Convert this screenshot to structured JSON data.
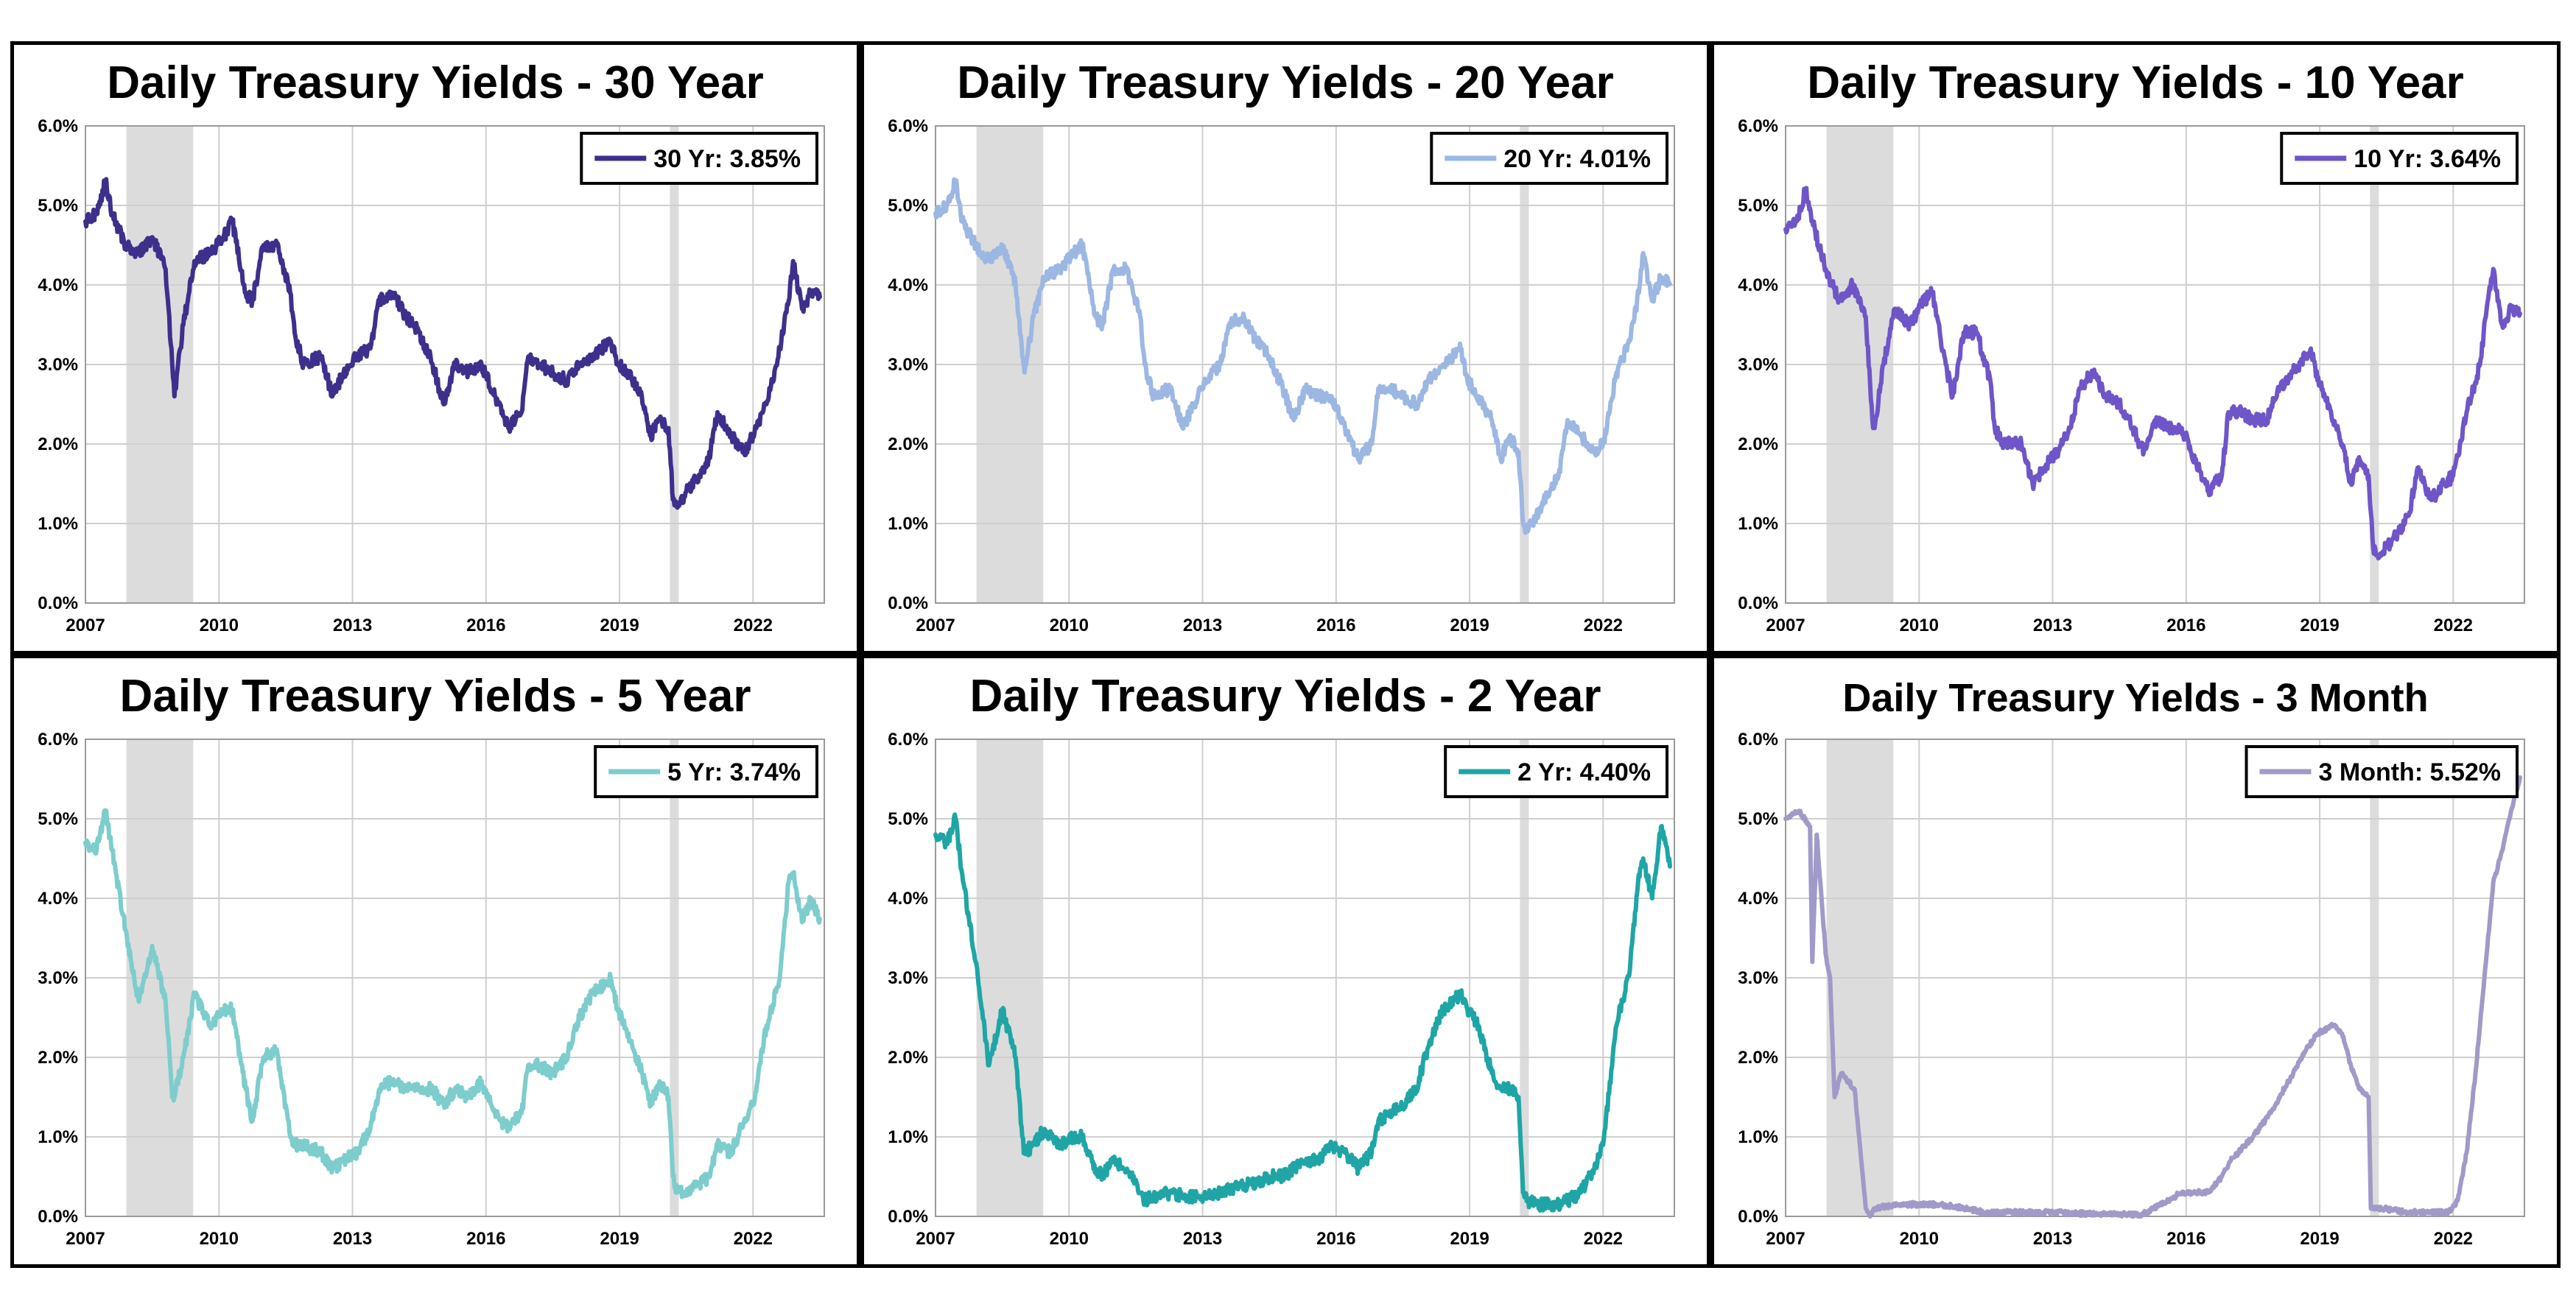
{
  "chart_data": [
    {
      "type": "line",
      "title": "Daily Treasury Yields - 30 Year",
      "legend": "30 Yr: 3.85%",
      "color": "#3d2f8c",
      "xlim": [
        2007.0,
        2023.6
      ],
      "ylim": [
        0,
        6
      ],
      "xticks": [
        "2007",
        "2010",
        "2013",
        "2016",
        "2019",
        "2022"
      ],
      "yticks": [
        "0.0%",
        "1.0%",
        "2.0%",
        "3.0%",
        "4.0%",
        "5.0%",
        "6.0%"
      ],
      "shaded_periods": [
        [
          2007.92,
          2009.42
        ],
        [
          2020.13,
          2020.33
        ]
      ],
      "series": [
        {
          "name": "30 Yr",
          "x": [
            2007.0,
            2007.25,
            2007.45,
            2007.6,
            2007.9,
            2008.2,
            2008.5,
            2008.8,
            2008.95,
            2009.0,
            2009.2,
            2009.45,
            2009.8,
            2010.1,
            2010.3,
            2010.6,
            2010.75,
            2011.0,
            2011.3,
            2011.6,
            2011.7,
            2011.9,
            2012.3,
            2012.55,
            2012.8,
            2013.1,
            2013.4,
            2013.6,
            2013.9,
            2014.2,
            2014.5,
            2014.8,
            2015.05,
            2015.3,
            2015.6,
            2015.9,
            2016.2,
            2016.5,
            2016.8,
            2016.95,
            2017.2,
            2017.5,
            2017.8,
            2018.1,
            2018.4,
            2018.8,
            2018.95,
            2019.2,
            2019.5,
            2019.7,
            2019.9,
            2020.1,
            2020.2,
            2020.3,
            2020.5,
            2020.8,
            2021.0,
            2021.2,
            2021.5,
            2021.8,
            2022.0,
            2022.3,
            2022.6,
            2022.8,
            2022.9,
            2023.1,
            2023.3,
            2023.5
          ],
          "values": [
            4.8,
            4.9,
            5.3,
            4.9,
            4.5,
            4.4,
            4.6,
            4.2,
            3.0,
            2.6,
            3.5,
            4.3,
            4.4,
            4.6,
            4.8,
            3.9,
            3.8,
            4.5,
            4.5,
            3.9,
            3.4,
            3.0,
            3.1,
            2.6,
            2.9,
            3.1,
            3.2,
            3.8,
            3.9,
            3.6,
            3.4,
            3.0,
            2.5,
            3.0,
            2.9,
            3.0,
            2.6,
            2.2,
            2.4,
            3.1,
            3.0,
            2.9,
            2.8,
            3.0,
            3.1,
            3.3,
            3.0,
            2.9,
            2.6,
            2.1,
            2.3,
            2.2,
            1.3,
            1.2,
            1.4,
            1.6,
            1.8,
            2.4,
            2.1,
            1.9,
            2.1,
            2.5,
            3.2,
            3.8,
            4.3,
            3.7,
            3.9,
            3.85
          ]
        }
      ]
    },
    {
      "type": "line",
      "title": "Daily Treasury Yields - 20 Year",
      "legend": "20 Yr: 4.01%",
      "color": "#9db7e3",
      "xlim": [
        2007.0,
        2023.6
      ],
      "ylim": [
        0,
        6
      ],
      "xticks": [
        "2007",
        "2010",
        "2013",
        "2016",
        "2019",
        "2022"
      ],
      "yticks": [
        "0.0%",
        "1.0%",
        "2.0%",
        "3.0%",
        "4.0%",
        "5.0%",
        "6.0%"
      ],
      "shaded_periods": [
        [
          2007.92,
          2009.42
        ],
        [
          2020.13,
          2020.33
        ]
      ],
      "series": [
        {
          "name": "20 Yr",
          "x": [
            2007.0,
            2007.25,
            2007.45,
            2007.6,
            2007.9,
            2008.2,
            2008.5,
            2008.8,
            2008.95,
            2009.0,
            2009.2,
            2009.45,
            2009.8,
            2010.1,
            2010.3,
            2010.6,
            2010.75,
            2011.0,
            2011.3,
            2011.6,
            2011.7,
            2011.9,
            2012.3,
            2012.55,
            2012.8,
            2013.1,
            2013.4,
            2013.6,
            2013.9,
            2014.2,
            2014.5,
            2014.8,
            2015.05,
            2015.3,
            2015.6,
            2015.9,
            2016.2,
            2016.5,
            2016.8,
            2016.95,
            2017.2,
            2017.5,
            2017.8,
            2018.1,
            2018.4,
            2018.8,
            2018.95,
            2019.2,
            2019.5,
            2019.7,
            2019.9,
            2020.1,
            2020.2,
            2020.3,
            2020.5,
            2020.8,
            2021.0,
            2021.2,
            2021.5,
            2021.8,
            2022.0,
            2022.3,
            2022.6,
            2022.8,
            2022.9,
            2023.1,
            2023.3,
            2023.5
          ],
          "values": [
            4.9,
            5.0,
            5.3,
            4.8,
            4.5,
            4.3,
            4.5,
            4.0,
            3.1,
            2.9,
            3.6,
            4.1,
            4.2,
            4.4,
            4.5,
            3.6,
            3.5,
            4.2,
            4.2,
            3.6,
            3.0,
            2.6,
            2.7,
            2.2,
            2.5,
            2.8,
            3.0,
            3.5,
            3.6,
            3.3,
            3.1,
            2.7,
            2.3,
            2.7,
            2.6,
            2.6,
            2.2,
            1.8,
            2.0,
            2.7,
            2.7,
            2.6,
            2.5,
            2.8,
            3.0,
            3.2,
            2.8,
            2.6,
            2.3,
            1.8,
            2.1,
            1.9,
            1.0,
            0.9,
            1.1,
            1.4,
            1.6,
            2.3,
            2.1,
            1.9,
            2.0,
            2.9,
            3.3,
            3.9,
            4.4,
            3.8,
            4.1,
            4.01
          ]
        }
      ]
    },
    {
      "type": "line",
      "title": "Daily Treasury Yields - 10 Year",
      "legend": "10 Yr: 3.64%",
      "color": "#6f55c8",
      "xlim": [
        2007.0,
        2023.6
      ],
      "ylim": [
        0,
        6
      ],
      "xticks": [
        "2007",
        "2010",
        "2013",
        "2016",
        "2019",
        "2022"
      ],
      "yticks": [
        "0.0%",
        "1.0%",
        "2.0%",
        "3.0%",
        "4.0%",
        "5.0%",
        "6.0%"
      ],
      "shaded_periods": [
        [
          2007.92,
          2009.42
        ],
        [
          2020.13,
          2020.33
        ]
      ],
      "series": [
        {
          "name": "10 Yr",
          "x": [
            2007.0,
            2007.25,
            2007.45,
            2007.6,
            2007.9,
            2008.2,
            2008.5,
            2008.8,
            2008.95,
            2009.0,
            2009.2,
            2009.45,
            2009.8,
            2010.1,
            2010.3,
            2010.6,
            2010.75,
            2011.0,
            2011.3,
            2011.6,
            2011.7,
            2011.9,
            2012.3,
            2012.55,
            2012.8,
            2013.1,
            2013.4,
            2013.6,
            2013.9,
            2014.2,
            2014.5,
            2014.8,
            2015.05,
            2015.3,
            2015.6,
            2015.9,
            2016.2,
            2016.5,
            2016.8,
            2016.95,
            2017.2,
            2017.5,
            2017.8,
            2018.1,
            2018.4,
            2018.8,
            2018.95,
            2019.2,
            2019.5,
            2019.7,
            2019.9,
            2020.1,
            2020.2,
            2020.3,
            2020.5,
            2020.8,
            2021.0,
            2021.2,
            2021.5,
            2021.8,
            2022.0,
            2022.3,
            2022.6,
            2022.8,
            2022.9,
            2023.1,
            2023.3,
            2023.5
          ],
          "values": [
            4.7,
            4.8,
            5.2,
            4.8,
            4.2,
            3.8,
            4.0,
            3.6,
            2.3,
            2.2,
            3.0,
            3.7,
            3.5,
            3.8,
            3.9,
            3.0,
            2.6,
            3.4,
            3.4,
            2.8,
            2.2,
            2.0,
            2.0,
            1.5,
            1.7,
            1.9,
            2.2,
            2.7,
            2.9,
            2.6,
            2.5,
            2.2,
            1.9,
            2.3,
            2.2,
            2.2,
            1.8,
            1.4,
            1.6,
            2.4,
            2.4,
            2.3,
            2.3,
            2.7,
            2.9,
            3.2,
            2.8,
            2.5,
            2.0,
            1.5,
            1.8,
            1.6,
            0.7,
            0.6,
            0.7,
            0.9,
            1.1,
            1.7,
            1.3,
            1.5,
            1.6,
            2.4,
            3.0,
            3.9,
            4.2,
            3.5,
            3.7,
            3.64
          ]
        }
      ]
    },
    {
      "type": "line",
      "title": "Daily Treasury Yields - 5 Year",
      "legend": "5 Yr: 3.74%",
      "color": "#7dcdcd",
      "xlim": [
        2007.0,
        2023.6
      ],
      "ylim": [
        0,
        6
      ],
      "xticks": [
        "2007",
        "2010",
        "2013",
        "2016",
        "2019",
        "2022"
      ],
      "yticks": [
        "0.0%",
        "1.0%",
        "2.0%",
        "3.0%",
        "4.0%",
        "5.0%",
        "6.0%"
      ],
      "shaded_periods": [
        [
          2007.92,
          2009.42
        ],
        [
          2020.13,
          2020.33
        ]
      ],
      "series": [
        {
          "name": "5 Yr",
          "x": [
            2007.0,
            2007.25,
            2007.45,
            2007.6,
            2007.9,
            2008.2,
            2008.5,
            2008.8,
            2008.95,
            2009.0,
            2009.2,
            2009.45,
            2009.8,
            2010.1,
            2010.3,
            2010.6,
            2010.75,
            2011.0,
            2011.3,
            2011.6,
            2011.7,
            2011.9,
            2012.3,
            2012.55,
            2012.8,
            2013.1,
            2013.4,
            2013.6,
            2013.9,
            2014.2,
            2014.5,
            2014.8,
            2015.05,
            2015.3,
            2015.6,
            2015.9,
            2016.2,
            2016.5,
            2016.8,
            2016.95,
            2017.2,
            2017.5,
            2017.8,
            2018.1,
            2018.4,
            2018.8,
            2018.95,
            2019.2,
            2019.5,
            2019.7,
            2019.9,
            2020.1,
            2020.2,
            2020.3,
            2020.5,
            2020.8,
            2021.0,
            2021.2,
            2021.5,
            2021.8,
            2022.0,
            2022.3,
            2022.6,
            2022.8,
            2022.9,
            2023.1,
            2023.3,
            2023.5
          ],
          "values": [
            4.7,
            4.6,
            5.1,
            4.6,
            3.6,
            2.7,
            3.4,
            2.7,
            1.5,
            1.5,
            2.0,
            2.8,
            2.4,
            2.6,
            2.6,
            1.6,
            1.2,
            2.0,
            2.1,
            1.0,
            0.9,
            0.9,
            0.8,
            0.6,
            0.7,
            0.8,
            1.1,
            1.6,
            1.7,
            1.6,
            1.6,
            1.6,
            1.4,
            1.6,
            1.5,
            1.7,
            1.3,
            1.1,
            1.3,
            1.9,
            1.9,
            1.8,
            2.0,
            2.5,
            2.8,
            3.0,
            2.6,
            2.3,
            1.8,
            1.4,
            1.7,
            1.5,
            0.5,
            0.3,
            0.3,
            0.4,
            0.5,
            0.9,
            0.8,
            1.2,
            1.4,
            2.4,
            3.0,
            4.2,
            4.3,
            3.7,
            4.0,
            3.74
          ]
        }
      ]
    },
    {
      "type": "line",
      "title": "Daily Treasury Yields - 2 Year",
      "legend": "2 Yr: 4.40%",
      "color": "#1fa5a5",
      "xlim": [
        2007.0,
        2023.6
      ],
      "ylim": [
        0,
        6
      ],
      "xticks": [
        "2007",
        "2010",
        "2013",
        "2016",
        "2019",
        "2022"
      ],
      "yticks": [
        "0.0%",
        "1.0%",
        "2.0%",
        "3.0%",
        "4.0%",
        "5.0%",
        "6.0%"
      ],
      "shaded_periods": [
        [
          2007.92,
          2009.42
        ],
        [
          2020.13,
          2020.33
        ]
      ],
      "series": [
        {
          "name": "2 Yr",
          "x": [
            2007.0,
            2007.25,
            2007.45,
            2007.6,
            2007.9,
            2008.2,
            2008.5,
            2008.8,
            2008.95,
            2009.0,
            2009.2,
            2009.45,
            2009.8,
            2010.1,
            2010.3,
            2010.6,
            2010.75,
            2011.0,
            2011.3,
            2011.6,
            2011.7,
            2011.9,
            2012.3,
            2012.55,
            2012.8,
            2013.1,
            2013.4,
            2013.6,
            2013.9,
            2014.2,
            2014.5,
            2014.8,
            2015.05,
            2015.3,
            2015.6,
            2015.9,
            2016.2,
            2016.5,
            2016.8,
            2016.95,
            2017.2,
            2017.5,
            2017.8,
            2018.1,
            2018.4,
            2018.8,
            2018.95,
            2019.2,
            2019.5,
            2019.7,
            2019.9,
            2020.1,
            2020.2,
            2020.3,
            2020.5,
            2020.8,
            2021.0,
            2021.2,
            2021.5,
            2021.8,
            2022.0,
            2022.3,
            2022.6,
            2022.8,
            2022.9,
            2023.1,
            2023.3,
            2023.5
          ],
          "values": [
            4.8,
            4.7,
            5.0,
            4.3,
            3.2,
            1.9,
            2.6,
            2.0,
            1.0,
            0.8,
            0.9,
            1.1,
            0.9,
            1.0,
            1.0,
            0.6,
            0.5,
            0.7,
            0.6,
            0.3,
            0.2,
            0.25,
            0.3,
            0.25,
            0.25,
            0.25,
            0.3,
            0.35,
            0.4,
            0.4,
            0.5,
            0.5,
            0.6,
            0.7,
            0.7,
            0.9,
            0.8,
            0.6,
            0.8,
            1.2,
            1.3,
            1.4,
            1.6,
            2.2,
            2.6,
            2.8,
            2.6,
            2.4,
            1.8,
            1.6,
            1.6,
            1.5,
            0.3,
            0.2,
            0.15,
            0.15,
            0.15,
            0.2,
            0.3,
            0.6,
            0.9,
            2.4,
            3.1,
            4.3,
            4.5,
            4.0,
            4.9,
            4.4
          ]
        }
      ]
    },
    {
      "type": "line",
      "title": "Daily Treasury Yields - 3 Month",
      "legend": "3 Month: 5.52%",
      "color": "#9f9ac8",
      "xlim": [
        2007.0,
        2023.6
      ],
      "ylim": [
        0,
        6
      ],
      "xticks": [
        "2007",
        "2010",
        "2013",
        "2016",
        "2019",
        "2022"
      ],
      "yticks": [
        "0.0%",
        "1.0%",
        "2.0%",
        "3.0%",
        "4.0%",
        "5.0%",
        "6.0%"
      ],
      "shaded_periods": [
        [
          2007.92,
          2009.42
        ],
        [
          2020.13,
          2020.33
        ]
      ],
      "series": [
        {
          "name": "3 Month",
          "x": [
            2007.0,
            2007.3,
            2007.55,
            2007.6,
            2007.7,
            2007.9,
            2008.0,
            2008.1,
            2008.25,
            2008.4,
            2008.55,
            2008.7,
            2008.8,
            2008.9,
            2009.0,
            2009.5,
            2010.0,
            2010.5,
            2011.0,
            2011.5,
            2012.0,
            2013.0,
            2014.0,
            2015.0,
            2015.9,
            2016.2,
            2016.5,
            2016.8,
            2017.0,
            2017.5,
            2017.9,
            2018.3,
            2018.7,
            2018.95,
            2019.3,
            2019.5,
            2019.7,
            2019.9,
            2020.0,
            2020.1,
            2020.15,
            2020.25,
            2020.4,
            2021.0,
            2021.5,
            2021.9,
            2022.1,
            2022.3,
            2022.5,
            2022.7,
            2022.9,
            2023.1,
            2023.3,
            2023.5
          ],
          "values": [
            5.0,
            5.1,
            4.9,
            3.2,
            4.8,
            3.3,
            3.0,
            1.5,
            1.8,
            1.7,
            1.6,
            0.7,
            0.1,
            0.0,
            0.1,
            0.15,
            0.15,
            0.15,
            0.1,
            0.05,
            0.05,
            0.05,
            0.03,
            0.02,
            0.3,
            0.3,
            0.3,
            0.5,
            0.7,
            1.0,
            1.3,
            1.7,
            2.1,
            2.3,
            2.4,
            2.3,
            1.9,
            1.6,
            1.55,
            1.5,
            0.1,
            0.1,
            0.1,
            0.05,
            0.05,
            0.05,
            0.2,
            0.8,
            1.8,
            3.0,
            4.2,
            4.6,
            5.1,
            5.52
          ]
        }
      ]
    }
  ]
}
